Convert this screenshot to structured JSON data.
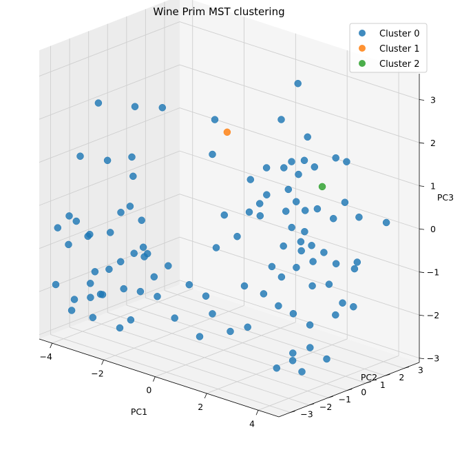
{
  "chart_data": {
    "type": "scatter",
    "projection": "3d",
    "title": "Wine Prim MST clustering",
    "xlabel": "PC1",
    "ylabel": "PC2",
    "zlabel": "PC3",
    "xlim": [
      -4.5,
      4.8
    ],
    "ylim": [
      -3.6,
      3.8
    ],
    "zlim": [
      -3.1,
      3.6
    ],
    "xticks": [
      -4,
      -2,
      0,
      2,
      4
    ],
    "yticks": [
      -3,
      -2,
      -1,
      0,
      1,
      2,
      3
    ],
    "zticks": [
      -3,
      -2,
      -1,
      0,
      1,
      2,
      3
    ],
    "grid": true,
    "legend_position": "top-right",
    "series": [
      {
        "name": "Cluster 0",
        "color": "#1f77b4",
        "points": [
          [
            0.6,
            -1.4,
            1.8
          ],
          [
            0.4,
            -1.0,
            2.5
          ],
          [
            2.3,
            0.8,
            3.4
          ],
          [
            1.8,
            0.6,
            2.5
          ],
          [
            2.6,
            0.9,
            2.2
          ],
          [
            2.1,
            1.1,
            1.2
          ],
          [
            2.5,
            1.4,
            1.4
          ],
          [
            1.9,
            0.6,
            1.4
          ],
          [
            3.4,
            1.3,
            1.8
          ],
          [
            3.6,
            1.6,
            1.7
          ],
          [
            1.3,
            0.5,
            1.3
          ],
          [
            0.9,
            0.2,
            1.0
          ],
          [
            2.4,
            1.0,
            1.6
          ],
          [
            2.2,
            0.6,
            1.6
          ],
          [
            2.0,
            0.7,
            0.9
          ],
          [
            1.6,
            0.1,
            0.8
          ],
          [
            1.0,
            0.0,
            0.3
          ],
          [
            1.2,
            0.3,
            0.2
          ],
          [
            2.2,
            0.3,
            0.5
          ],
          [
            2.8,
            0.5,
            0.6
          ],
          [
            2.5,
            0.2,
            0.2
          ],
          [
            1.7,
            -0.4,
            0.7
          ],
          [
            3.2,
            0.6,
            0.7
          ],
          [
            3.6,
            0.9,
            0.5
          ],
          [
            2.6,
            0.3,
            0.8
          ],
          [
            3.0,
            0.2,
            0.2
          ],
          [
            3.9,
            1.1,
            0.9
          ],
          [
            4.3,
            1.3,
            0.6
          ],
          [
            4.7,
            2.2,
            0.4
          ],
          [
            4.2,
            1.2,
            -0.6
          ],
          [
            0.4,
            -0.5,
            0.2
          ],
          [
            0.9,
            -0.5,
            -0.2
          ],
          [
            0.6,
            -1.2,
            -0.4
          ],
          [
            2.4,
            -0.1,
            -0.2
          ],
          [
            2.8,
            0.3,
            -0.3
          ],
          [
            3.2,
            0.3,
            -0.1
          ],
          [
            3.0,
            0.0,
            0.0
          ],
          [
            3.4,
            0.1,
            -0.4
          ],
          [
            3.6,
            0.4,
            -0.2
          ],
          [
            2.1,
            -0.3,
            -0.7
          ],
          [
            2.4,
            -0.2,
            -0.9
          ],
          [
            2.9,
            -0.1,
            -0.6
          ],
          [
            3.3,
            0.2,
            -1.0
          ],
          [
            3.8,
            0.4,
            -0.9
          ],
          [
            4.0,
            0.5,
            -0.4
          ],
          [
            4.4,
            0.3,
            -1.2
          ],
          [
            4.6,
            0.8,
            -0.3
          ],
          [
            1.4,
            -0.8,
            -1.2
          ],
          [
            2.0,
            -0.6,
            -1.3
          ],
          [
            2.5,
            -0.5,
            -1.5
          ],
          [
            3.0,
            -0.4,
            -1.6
          ],
          [
            3.5,
            -0.2,
            -1.8
          ],
          [
            4.2,
            0.2,
            -1.5
          ],
          [
            4.6,
            0.6,
            -1.3
          ],
          [
            4.3,
            -0.4,
            -2.4
          ],
          [
            3.8,
            -0.6,
            -2.2
          ],
          [
            3.2,
            -0.7,
            -2.6
          ],
          [
            2.8,
            -1.0,
            -2.8
          ],
          [
            3.5,
            -1.1,
            -2.3
          ],
          [
            4.0,
            -1.3,
            -2.6
          ],
          [
            -0.3,
            -1.4,
            -1.4
          ],
          [
            0.2,
            -1.2,
            -1.6
          ],
          [
            0.6,
            -1.4,
            -1.9
          ],
          [
            1.6,
            -0.9,
            -2.1
          ],
          [
            1.0,
            -1.0,
            -2.3
          ],
          [
            -0.6,
            -2.1,
            -0.9
          ],
          [
            -1.2,
            -2.6,
            -0.5
          ],
          [
            -1.0,
            -2.3,
            -1.2
          ],
          [
            -0.8,
            -2.4,
            -1.6
          ],
          [
            -1.6,
            -2.0,
            -0.9
          ],
          [
            -0.2,
            -2.3,
            -2.0
          ],
          [
            0.4,
            -1.8,
            -2.4
          ],
          [
            -3.5,
            -2.8,
            1.2
          ],
          [
            -3.9,
            -1.3,
            2.1
          ],
          [
            -2.7,
            -1.0,
            2.2
          ],
          [
            -2.3,
            -0.1,
            2.1
          ],
          [
            -2.6,
            -1.3,
            1.1
          ],
          [
            -3.4,
            -1.5,
            0.9
          ],
          [
            -3.1,
            -1.2,
            -0.3
          ],
          [
            -2.7,
            -1.1,
            0.6
          ],
          [
            -3.8,
            -2.6,
            -0.4
          ],
          [
            -4.0,
            -2.7,
            -0.3
          ],
          [
            -4.3,
            -2.9,
            -0.6
          ],
          [
            -4.1,
            -2.6,
            -1.0
          ],
          [
            -3.5,
            -2.3,
            -0.7
          ],
          [
            -3.2,
            -2.8,
            -0.6
          ],
          [
            -2.7,
            -2.3,
            -0.5
          ],
          [
            -2.3,
            -1.8,
            0.1
          ],
          [
            -2.0,
            -1.6,
            -0.2
          ],
          [
            -1.7,
            -1.7,
            -0.9
          ],
          [
            -2.0,
            -2.0,
            -0.9
          ],
          [
            -2.3,
            -2.3,
            -1.1
          ],
          [
            -2.6,
            -2.5,
            -1.3
          ],
          [
            -3.0,
            -2.7,
            -1.4
          ],
          [
            -3.4,
            -2.4,
            -1.8
          ],
          [
            -3.0,
            -2.3,
            -2.0
          ],
          [
            -2.4,
            -2.0,
            -1.8
          ],
          [
            -1.9,
            -1.8,
            -1.8
          ],
          [
            -3.8,
            -2.7,
            -2.2
          ],
          [
            -3.3,
            -2.0,
            -2.1
          ],
          [
            -2.2,
            -1.9,
            -2.5
          ],
          [
            -3.1,
            -2.8,
            -2.0
          ],
          [
            -2.7,
            -1.8,
            -2.8
          ],
          [
            -4.3,
            -3.0,
            -1.9
          ],
          [
            -4.2,
            -2.3,
            -2.6
          ],
          [
            -3.6,
            -2.0,
            -2.7
          ]
        ]
      },
      {
        "name": "Cluster 1",
        "color": "#ff7f0e",
        "points": [
          [
            -0.3,
            0.6,
            1.8
          ]
        ]
      },
      {
        "name": "Cluster 2",
        "color": "#2ca02c",
        "points": [
          [
            2.8,
            1.4,
            1.0
          ]
        ]
      }
    ]
  }
}
